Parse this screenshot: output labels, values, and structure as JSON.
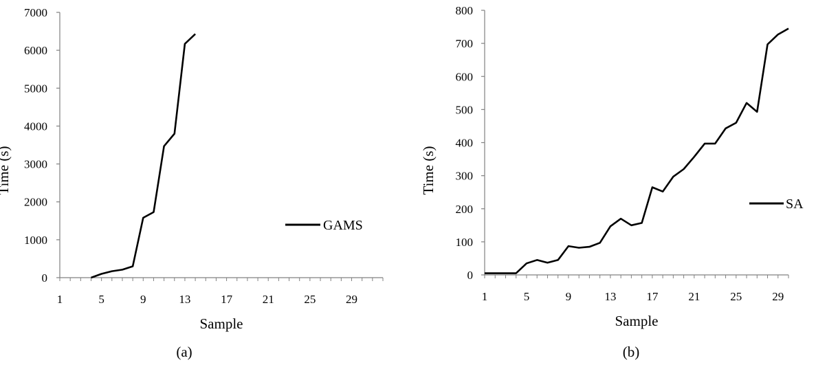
{
  "chart_data": [
    {
      "type": "line",
      "caption": "(a)",
      "xlabel": "Sample",
      "ylabel": "Time (s)",
      "ylim": [
        0,
        7000
      ],
      "yticks": [
        0,
        1000,
        2000,
        3000,
        4000,
        5000,
        6000,
        7000
      ],
      "xlim": [
        1,
        32
      ],
      "xticks": [
        1,
        5,
        9,
        13,
        17,
        21,
        25,
        29
      ],
      "legend": "right",
      "grid": false,
      "series": [
        {
          "name": "GAMS",
          "color": "#000000",
          "x": [
            4,
            5,
            6,
            7,
            8,
            9,
            10,
            11,
            12,
            13,
            14
          ],
          "y": [
            0,
            100,
            170,
            210,
            300,
            1580,
            1730,
            3470,
            3800,
            6170,
            6430
          ]
        }
      ]
    },
    {
      "type": "line",
      "caption": "(b)",
      "xlabel": "Sample",
      "ylabel": "Time (s)",
      "ylim": [
        0,
        800
      ],
      "yticks": [
        0,
        100,
        200,
        300,
        400,
        500,
        600,
        700,
        800
      ],
      "xlim": [
        1,
        30
      ],
      "xticks": [
        1,
        5,
        9,
        13,
        17,
        21,
        25,
        29
      ],
      "legend": "right",
      "grid": false,
      "series": [
        {
          "name": "SA",
          "color": "#000000",
          "x": [
            1,
            2,
            3,
            4,
            5,
            6,
            7,
            8,
            9,
            10,
            11,
            12,
            13,
            14,
            15,
            16,
            17,
            18,
            19,
            20,
            21,
            22,
            23,
            24,
            25,
            26,
            27,
            28,
            29,
            30
          ],
          "y": [
            5,
            5,
            5,
            5,
            35,
            45,
            37,
            45,
            87,
            82,
            85,
            97,
            147,
            170,
            150,
            157,
            265,
            252,
            297,
            320,
            357,
            397,
            397,
            443,
            460,
            520,
            493,
            697,
            727,
            745
          ]
        }
      ]
    }
  ]
}
